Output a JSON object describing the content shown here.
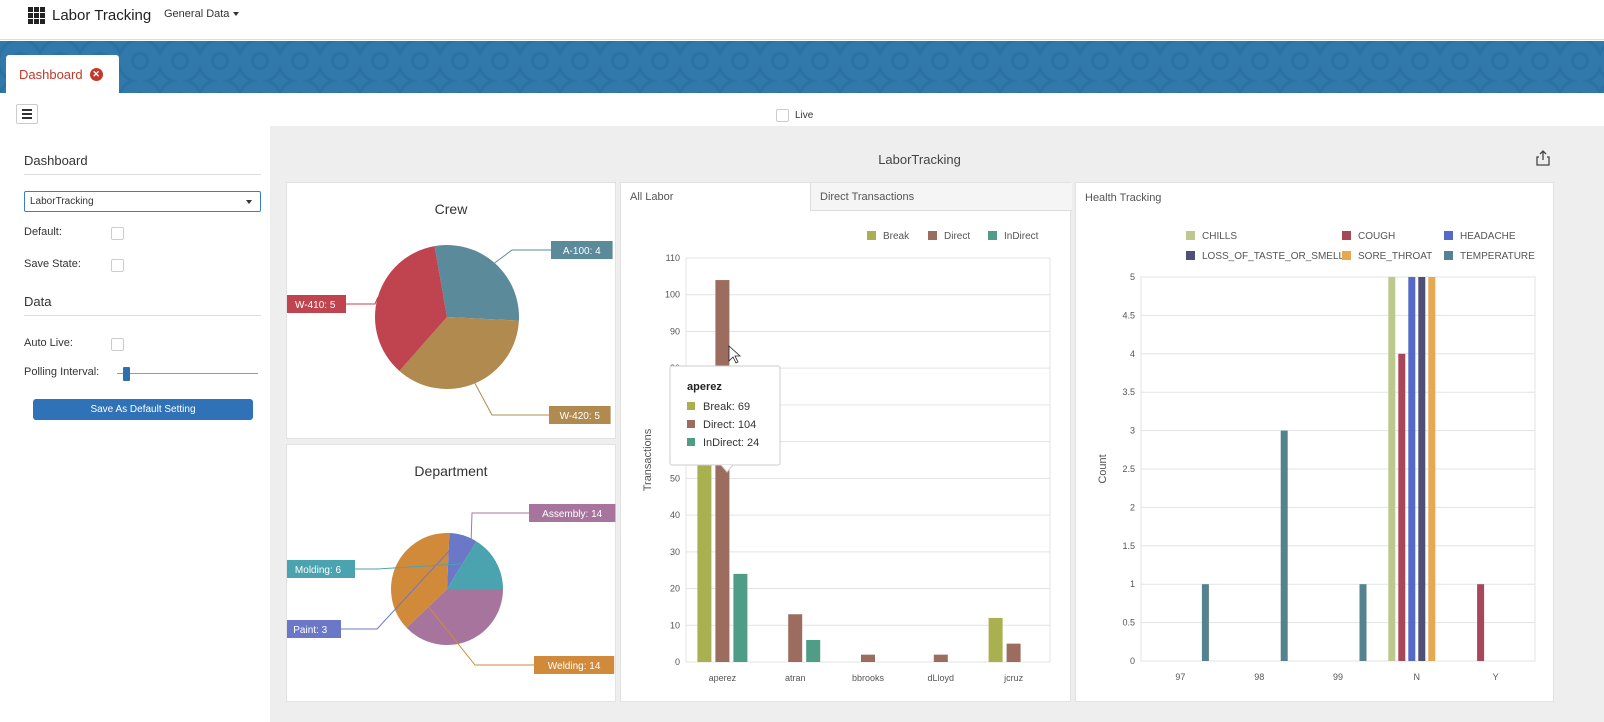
{
  "app": {
    "title": "Labor Tracking",
    "menu_general": "General Data"
  },
  "tabs": {
    "dashboard": "Dashboard"
  },
  "toolbar": {
    "live_label": "Live"
  },
  "sidebar": {
    "dashboard_header": "Dashboard",
    "selected_dashboard": "LaborTracking",
    "default_label": "Default:",
    "save_state_label": "Save State:",
    "data_header": "Data",
    "auto_live_label": "Auto Live:",
    "polling_label": "Polling Interval:",
    "polling_value": 0.07,
    "save_button": "Save As Default Setting"
  },
  "main": {
    "title": "LaborTracking"
  },
  "crew": {
    "title": "Crew",
    "slices": [
      {
        "label": "A-100: 4",
        "value": 4,
        "color": "#5b8a9a"
      },
      {
        "label": "W-420: 5",
        "value": 5,
        "color": "#b08a4e"
      },
      {
        "label": "W-410: 5",
        "value": 5,
        "color": "#c0444f"
      }
    ]
  },
  "department": {
    "title": "Department",
    "slices": [
      {
        "label": "Assembly: 14",
        "value": 14,
        "color": "#a7749d"
      },
      {
        "label": "Welding: 14",
        "value": 14,
        "color": "#d18a3a"
      },
      {
        "label": "Paint: 3",
        "value": 3,
        "color": "#6b78c8"
      },
      {
        "label": "Molding: 6",
        "value": 6,
        "color": "#4aa3ae"
      }
    ]
  },
  "labor": {
    "tab_all": "All Labor",
    "tab_direct": "Direct Transactions",
    "legend": [
      {
        "name": "Break",
        "color": "#a9b04f"
      },
      {
        "name": "Direct",
        "color": "#9c6d5e"
      },
      {
        "name": "InDirect",
        "color": "#4f9c87"
      }
    ],
    "y_ticks": [
      "0",
      "10",
      "20",
      "30",
      "40",
      "50",
      "60",
      "70",
      "80",
      "90",
      "100",
      "110"
    ],
    "ylabel": "Transactions",
    "tooltip": {
      "title": "aperez",
      "lines": [
        "Break: 69",
        "Direct: 104",
        "InDirect: 24"
      ]
    }
  },
  "health": {
    "title": "Health Tracking",
    "ylabel": "Count",
    "y_ticks": [
      "0",
      "0.5",
      "1",
      "1.5",
      "2",
      "2.5",
      "3",
      "3.5",
      "4",
      "4.5",
      "5"
    ],
    "legend": [
      {
        "name": "CHILLS",
        "color": "#bcc98d"
      },
      {
        "name": "COUGH",
        "color": "#a9475a"
      },
      {
        "name": "HEADACHE",
        "color": "#5569c8"
      },
      {
        "name": "LOSS_OF_TASTE_OR_SMELL",
        "color": "#4f4f78"
      },
      {
        "name": "SORE_THROAT",
        "color": "#e6a94f"
      },
      {
        "name": "TEMPERATURE",
        "color": "#55828f"
      }
    ]
  },
  "chart_data": [
    {
      "type": "pie",
      "title": "Crew",
      "labels": [
        "A-100",
        "W-420",
        "W-410"
      ],
      "values": [
        4,
        5,
        5
      ]
    },
    {
      "type": "pie",
      "title": "Department",
      "labels": [
        "Assembly",
        "Welding",
        "Paint",
        "Molding"
      ],
      "values": [
        14,
        14,
        3,
        6
      ]
    },
    {
      "type": "bar",
      "title": "",
      "ylabel": "Transactions",
      "ylim": [
        0,
        110
      ],
      "categories": [
        "aperez",
        "atran",
        "bbrooks",
        "dLloyd",
        "jcruz"
      ],
      "series": [
        {
          "name": "Break",
          "values": [
            69,
            0,
            0,
            0,
            12
          ]
        },
        {
          "name": "Direct",
          "values": [
            104,
            13,
            2,
            2,
            5
          ]
        },
        {
          "name": "InDirect",
          "values": [
            24,
            6,
            0,
            0,
            0
          ]
        }
      ]
    },
    {
      "type": "bar",
      "title": "Health Tracking",
      "ylabel": "Count",
      "ylim": [
        0,
        5
      ],
      "categories": [
        "97",
        "98",
        "99",
        "N",
        "Y"
      ],
      "series": [
        {
          "name": "CHILLS",
          "values": [
            0,
            0,
            0,
            5,
            0
          ]
        },
        {
          "name": "COUGH",
          "values": [
            0,
            0,
            0,
            4,
            1
          ]
        },
        {
          "name": "HEADACHE",
          "values": [
            0,
            0,
            0,
            5,
            0
          ]
        },
        {
          "name": "LOSS_OF_TASTE_OR_SMELL",
          "values": [
            0,
            0,
            0,
            5,
            0
          ]
        },
        {
          "name": "SORE_THROAT",
          "values": [
            0,
            0,
            0,
            5,
            0
          ]
        },
        {
          "name": "TEMPERATURE",
          "values": [
            1,
            3,
            1,
            0,
            0
          ]
        }
      ]
    }
  ]
}
